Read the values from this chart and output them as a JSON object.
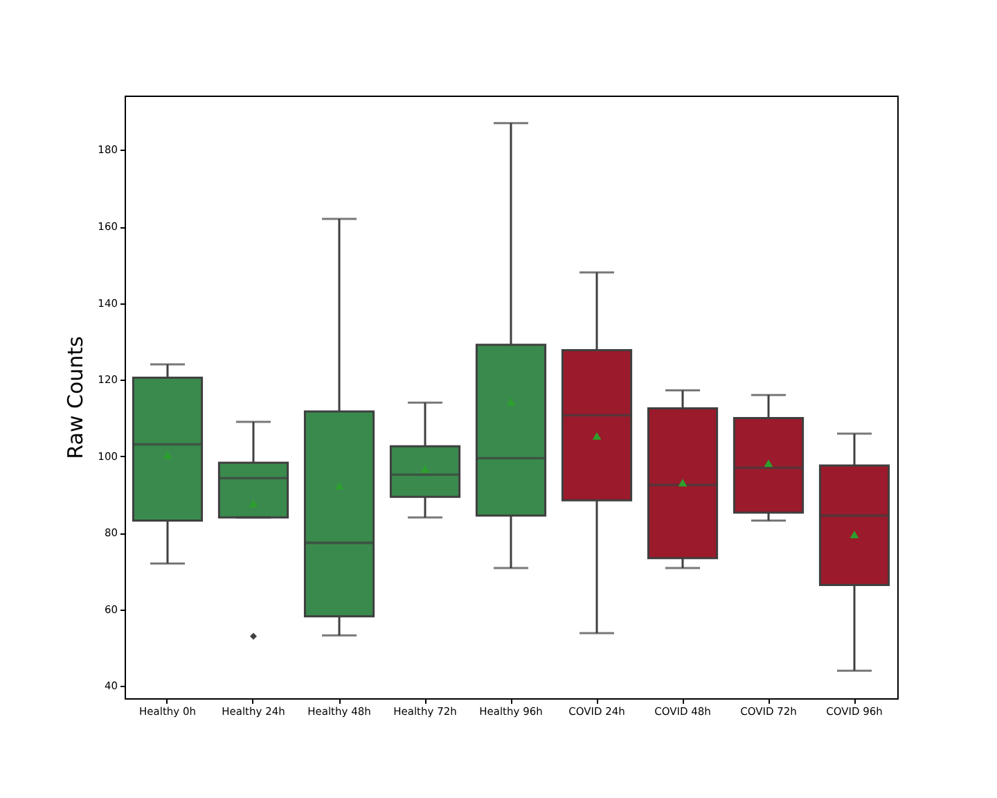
{
  "chart_data": {
    "type": "box",
    "ylabel": "Raw Counts",
    "categories": [
      "Healthy 0h",
      "Healthy 24h",
      "Healthy 48h",
      "Healthy 72h",
      "Healthy 96h",
      "COVID 24h",
      "COVID 48h",
      "COVID 72h",
      "COVID 96h"
    ],
    "colors": [
      "#3a8a4e",
      "#3a8a4e",
      "#3a8a4e",
      "#3a8a4e",
      "#3a8a4e",
      "#9b1a2b",
      "#9b1a2b",
      "#9b1a2b",
      "#9b1a2b"
    ],
    "boxes": [
      {
        "low": 72,
        "q1": 83.2,
        "median": 103.1,
        "q3": 120.5,
        "high": 124
      },
      {
        "low": 84,
        "q1": 84,
        "median": 94.3,
        "q3": 98.3,
        "high": 109,
        "outliers": [
          53
        ]
      },
      {
        "low": 53.2,
        "q1": 58.2,
        "median": 77.4,
        "q3": 111.7,
        "high": 162
      },
      {
        "low": 84,
        "q1": 89.4,
        "median": 95.2,
        "q3": 102.6,
        "high": 114
      },
      {
        "low": 70.8,
        "q1": 84.5,
        "median": 99.5,
        "q3": 129.1,
        "high": 187
      },
      {
        "low": 53.8,
        "q1": 88.5,
        "median": 110.7,
        "q3": 127.7,
        "high": 148
      },
      {
        "low": 70.8,
        "q1": 73.4,
        "median": 92.5,
        "q3": 112.5,
        "high": 117.2
      },
      {
        "low": 83.2,
        "q1": 85.3,
        "median": 97,
        "q3": 110,
        "high": 116
      },
      {
        "low": 44,
        "q1": 66.4,
        "median": 84.5,
        "q3": 97.6,
        "high": 105.9
      }
    ],
    "series": [
      {
        "type": "scatter",
        "color": "#2ca02c",
        "marker": "triangle",
        "x": [
          "Healthy 0h",
          "Healthy 24h",
          "Healthy 48h",
          "Healthy 72h",
          "Healthy 96h",
          "COVID 24h",
          "COVID 48h",
          "COVID 72h",
          "COVID 96h"
        ],
        "values": [
          100.3,
          87.7,
          92.3,
          96.7,
          114.2,
          105.3,
          93.1,
          98.2,
          79.6
        ]
      }
    ],
    "ylim": [
      36.8,
      194.2
    ],
    "yticks": [
      40,
      60,
      80,
      100,
      120,
      140,
      160,
      180
    ]
  }
}
